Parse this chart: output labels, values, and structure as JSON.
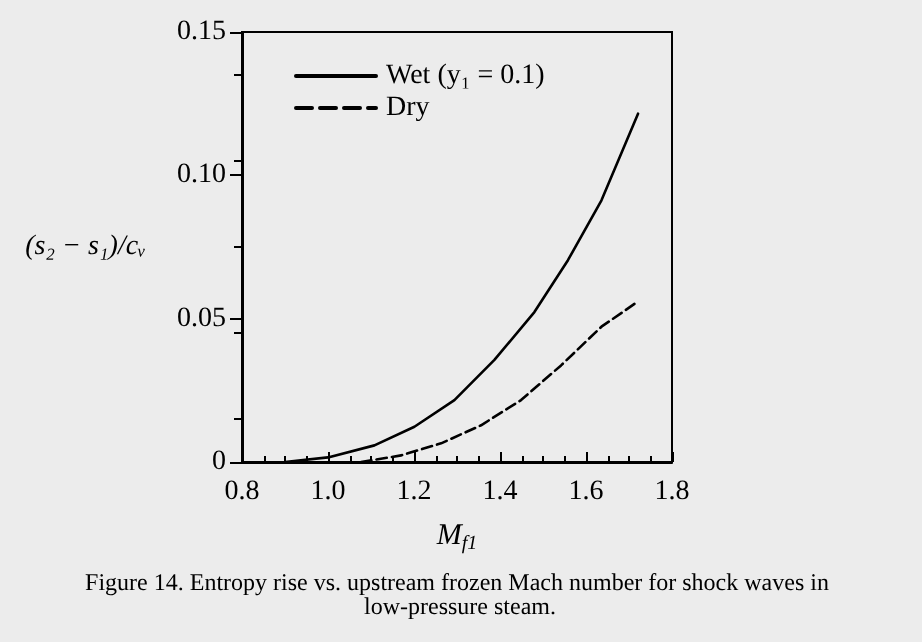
{
  "chart_data": {
    "type": "line",
    "xlabel": "M$_{f1}$",
    "ylabel": "(s₂ − s₁)/cᵥ",
    "annotations": [
      "Figure 14. Entropy rise vs. upstream frozen Mach number for shock waves in low-pressure steam."
    ],
    "xlim": [
      0.8,
      1.8
    ],
    "xticks": [
      0.8,
      {
        "value": 1.0,
        "label": "1.0"
      },
      1.2,
      1.4,
      1.6,
      1.8
    ],
    "ylim": [
      0,
      0.15
    ],
    "yticks": [
      0,
      {
        "value": 0.05,
        "label": "0.05"
      },
      {
        "value": 0.1,
        "label": "0.10"
      },
      0.15
    ],
    "grid": false,
    "legend": "top left",
    "marker": "none",
    "series": [
      {
        "name": "Wet (y₁ = 0.1)",
        "color": "#000000",
        "line_style": "solid",
        "x": [
          0.9,
          1.0,
          1.108,
          1.201,
          1.294,
          1.387,
          1.48,
          1.558,
          1.636,
          1.721
        ],
        "values": [
          0,
          0.0016,
          0.0058,
          0.0123,
          0.0216,
          0.0356,
          0.0523,
          0.0704,
          0.0913,
          0.1215
        ]
      },
      {
        "name": "Dry",
        "color": "#000000",
        "line_style": "dashed",
        "x": [
          1.077,
          1.17,
          1.263,
          1.356,
          1.449,
          1.542,
          1.636,
          1.721
        ],
        "values": [
          0,
          0.0023,
          0.0065,
          0.0128,
          0.0216,
          0.0337,
          0.0472,
          0.056
        ]
      }
    ]
  }
}
